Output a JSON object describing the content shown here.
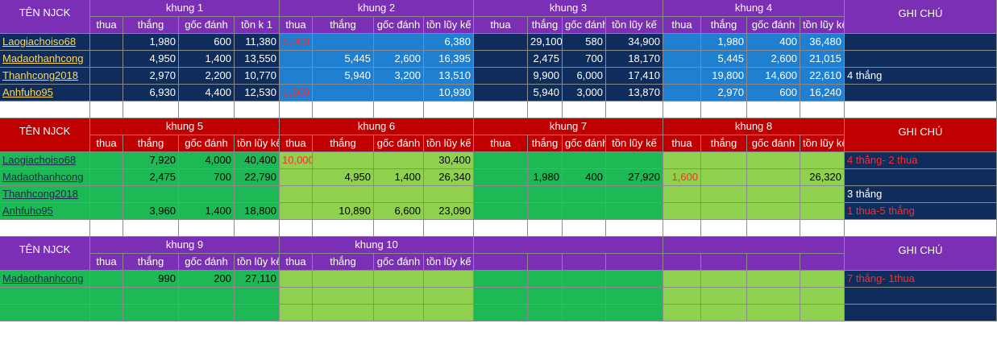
{
  "colors": {
    "purple": "#7b2fb5",
    "navy": "#0f2d5c",
    "blue": "#1f7fd0",
    "red": "#c00000",
    "green": "#1db954",
    "lightgreen": "#8fd14f",
    "gold": "#ffd75a"
  },
  "sections": [
    {
      "row_top": 0,
      "header_color": "purple",
      "body_theme": "navy",
      "name_header": "TÊN NJCK",
      "note_header": "GHI CHÚ",
      "frames": [
        {
          "label": "khung 1",
          "cols": [
            "thua",
            "thắng",
            "gốc đánh",
            "tồn k 1"
          ]
        },
        {
          "label": "khung 2",
          "cols": [
            "thua",
            "thắng",
            "gốc đánh",
            "tồn lũy kế"
          ]
        },
        {
          "label": "khung 3",
          "cols": [
            "thua",
            "thắng",
            "gốc đánh",
            "tồn lũy kế"
          ]
        },
        {
          "label": "khung 4",
          "cols": [
            "thua",
            "thắng",
            "gốc đánh",
            "tồn lũy kế"
          ]
        }
      ],
      "rows": [
        {
          "name": "Laogiachoiso68",
          "values": [
            "",
            "1,980",
            "600",
            "11,380",
            "5,000",
            "",
            "",
            "6,380",
            "",
            "29,100",
            "580",
            "34,900",
            "",
            "1,980",
            "400",
            "36,480"
          ],
          "note": ""
        },
        {
          "name": "Madaothanhcong",
          "values": [
            "",
            "4,950",
            "1,400",
            "13,550",
            "",
            "5,445",
            "2,600",
            "16,395",
            "",
            "2,475",
            "700",
            "18,170",
            "",
            "5,445",
            "2,600",
            "21,015"
          ],
          "note": ""
        },
        {
          "name": "Thanhcong2018",
          "values": [
            "",
            "2,970",
            "2,200",
            "10,770",
            "",
            "5,940",
            "3,200",
            "13,510",
            "",
            "9,900",
            "6,000",
            "17,410",
            "",
            "19,800",
            "14,600",
            "22,610"
          ],
          "note": "4 thắng"
        },
        {
          "name": "Anhfuho95",
          "values": [
            "",
            "6,930",
            "4,400",
            "12,530",
            "1,600",
            "",
            "",
            "10,930",
            "",
            "5,940",
            "3,000",
            "13,870",
            "",
            "2,970",
            "600",
            "16,240"
          ],
          "note": ""
        }
      ]
    },
    {
      "row_top": 147,
      "header_color": "red",
      "body_theme": "green",
      "name_header": "TÊN NJCK",
      "note_header": "GHI CHÚ",
      "frames": [
        {
          "label": "khung 5",
          "cols": [
            "thua",
            "thắng",
            "gốc đánh",
            "tồn lũy kế"
          ]
        },
        {
          "label": "khung 6",
          "cols": [
            "thua",
            "thắng",
            "gốc đánh",
            "tồn lũy kế"
          ]
        },
        {
          "label": "khung 7",
          "cols": [
            "thua",
            "thắng",
            "gốc đánh",
            "tồn lũy kế"
          ]
        },
        {
          "label": "khung 8",
          "cols": [
            "thua",
            "thắng",
            "gốc đánh",
            "tồn lũy kế"
          ]
        }
      ],
      "rows": [
        {
          "name": "Laogiachoiso68",
          "values": [
            "",
            "7,920",
            "4,000",
            "40,400",
            "10,000",
            "",
            "",
            "30,400",
            "",
            "",
            "",
            "",
            "",
            "",
            "",
            ""
          ],
          "note": "4 thắng- 2 thua"
        },
        {
          "name": "Madaothanhcong",
          "values": [
            "",
            "2,475",
            "700",
            "22,790",
            "",
            "4,950",
            "1,400",
            "26,340",
            "",
            "1,980",
            "400",
            "27,920",
            "1,600",
            "",
            "",
            "26,320"
          ],
          "note": ""
        },
        {
          "name": "Thanhcong2018",
          "values": [
            "",
            "",
            "",
            "",
            "",
            "",
            "",
            "",
            "",
            "",
            "",
            "",
            "",
            "",
            "",
            ""
          ],
          "note": "3 thắng"
        },
        {
          "name": "Anhfuho95",
          "values": [
            "",
            "3,960",
            "1,400",
            "18,800",
            "",
            "10,890",
            "6,600",
            "23,090",
            "",
            "",
            "",
            "",
            "",
            "",
            "",
            ""
          ],
          "note": "1 thua-5 thắng"
        }
      ]
    },
    {
      "row_top": 294,
      "header_color": "purple",
      "body_theme": "green",
      "name_header": "TÊN NJCK",
      "note_header": "GHI CHÚ",
      "frames": [
        {
          "label": "khung 9",
          "cols": [
            "thua",
            "thắng",
            "gốc đánh",
            "tồn lũy kế"
          ]
        },
        {
          "label": "khung 10",
          "cols": [
            "thua",
            "thắng",
            "gốc đánh",
            "tồn lũy kế"
          ]
        },
        {
          "label": "",
          "cols": [
            "",
            "",
            "",
            ""
          ]
        },
        {
          "label": "",
          "cols": [
            "",
            "",
            "",
            ""
          ]
        }
      ],
      "rows": [
        {
          "name": "Madaothanhcong",
          "values": [
            "",
            "990",
            "200",
            "27,110",
            "",
            "",
            "",
            "",
            "",
            "",
            "",
            "",
            "",
            "",
            "",
            ""
          ],
          "note": "7 thắng- 1thua"
        },
        {
          "name": "",
          "values": [
            "",
            "",
            "",
            "",
            "",
            "",
            "",
            "",
            "",
            "",
            "",
            "",
            "",
            "",
            "",
            ""
          ],
          "note": ""
        },
        {
          "name": "",
          "values": [
            "",
            "",
            "",
            "",
            "",
            "",
            "",
            "",
            "",
            "",
            "",
            "",
            "",
            "",
            "",
            ""
          ],
          "note": ""
        }
      ]
    }
  ]
}
